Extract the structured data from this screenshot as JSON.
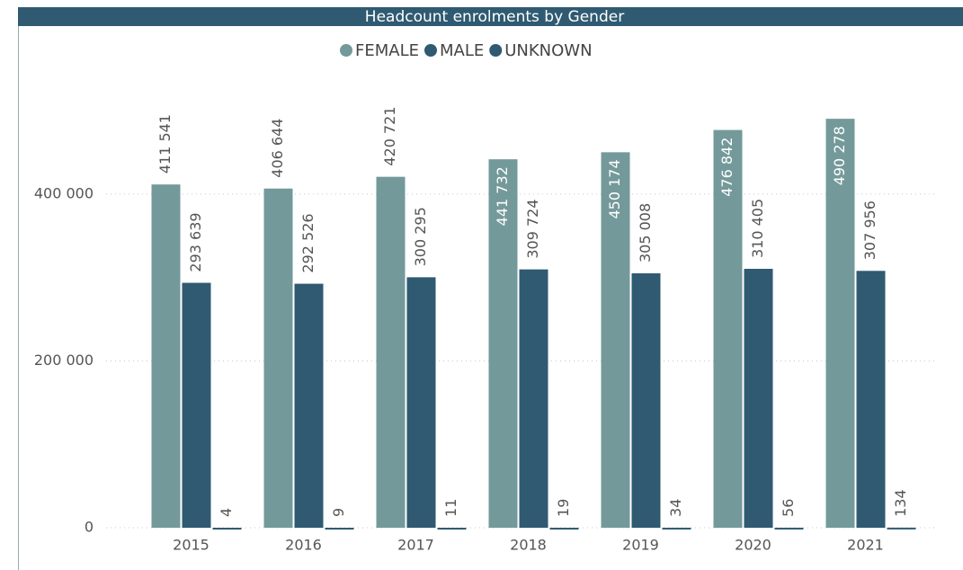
{
  "chart_data": {
    "type": "bar",
    "title": "Headcount enrolments by Gender",
    "categories": [
      "2015",
      "2016",
      "2017",
      "2018",
      "2019",
      "2020",
      "2021"
    ],
    "series": [
      {
        "name": "FEMALE",
        "color": "#74999a",
        "values": [
          411541,
          406644,
          420721,
          441732,
          450174,
          476842,
          490278
        ],
        "value_labels": [
          "411 541",
          "406 644",
          "420 721",
          "441 732",
          "450 174",
          "476 842",
          "490 278"
        ]
      },
      {
        "name": "MALE",
        "color": "#2f5a72",
        "values": [
          293639,
          292526,
          300295,
          309724,
          305008,
          310405,
          307956
        ],
        "value_labels": [
          "293 639",
          "292 526",
          "300 295",
          "309 724",
          "305 008",
          "310 405",
          "307 956"
        ]
      },
      {
        "name": "UNKNOWN",
        "color": "#2f5a72",
        "values": [
          4,
          9,
          11,
          19,
          34,
          56,
          134
        ]
      }
    ],
    "ylim": [
      0,
      540000
    ],
    "yticks": [
      0,
      {
        "value": 200000,
        "label": "200 000"
      },
      {
        "value": 400000,
        "label": "400 000"
      }
    ],
    "grid": true,
    "legend": "top"
  }
}
